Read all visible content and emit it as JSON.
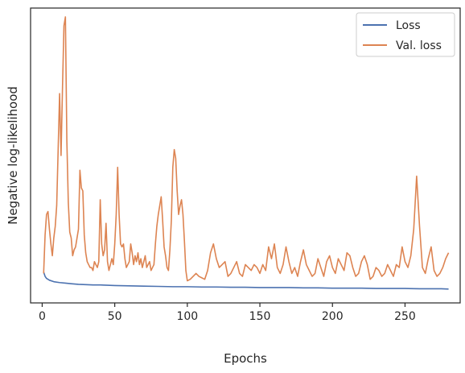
{
  "chart_data": {
    "type": "line",
    "title": "",
    "xlabel": "Epochs",
    "ylabel": "Negative log-likelihood",
    "xlim": [
      -8,
      288
    ],
    "ylim": [
      0.0,
      1.0
    ],
    "xticks": [
      0,
      50,
      100,
      150,
      200,
      250
    ],
    "yticks_shown": false,
    "grid": false,
    "legend_position": "top-right",
    "series": [
      {
        "name": "Loss",
        "color": "#4c72b0",
        "points": [
          [
            1,
            0.105
          ],
          [
            2,
            0.09
          ],
          [
            3,
            0.083
          ],
          [
            5,
            0.077
          ],
          [
            8,
            0.072
          ],
          [
            12,
            0.069
          ],
          [
            16,
            0.067
          ],
          [
            20,
            0.065
          ],
          [
            25,
            0.063
          ],
          [
            30,
            0.062
          ],
          [
            35,
            0.061
          ],
          [
            40,
            0.061
          ],
          [
            45,
            0.06
          ],
          [
            50,
            0.059
          ],
          [
            60,
            0.058
          ],
          [
            70,
            0.057
          ],
          [
            80,
            0.056
          ],
          [
            90,
            0.055
          ],
          [
            100,
            0.055
          ],
          [
            110,
            0.054
          ],
          [
            120,
            0.054
          ],
          [
            130,
            0.053
          ],
          [
            140,
            0.053
          ],
          [
            150,
            0.052
          ],
          [
            160,
            0.052
          ],
          [
            170,
            0.052
          ],
          [
            180,
            0.051
          ],
          [
            190,
            0.051
          ],
          [
            200,
            0.05
          ],
          [
            210,
            0.05
          ],
          [
            220,
            0.05
          ],
          [
            230,
            0.049
          ],
          [
            240,
            0.049
          ],
          [
            250,
            0.049
          ],
          [
            260,
            0.048
          ],
          [
            270,
            0.048
          ],
          [
            275,
            0.048
          ],
          [
            280,
            0.047
          ]
        ]
      },
      {
        "name": "Val. loss",
        "color": "#dd8452",
        "points": [
          [
            1,
            0.1
          ],
          [
            2,
            0.23
          ],
          [
            3,
            0.3
          ],
          [
            4,
            0.31
          ],
          [
            5,
            0.25
          ],
          [
            6,
            0.2
          ],
          [
            7,
            0.16
          ],
          [
            8,
            0.22
          ],
          [
            9,
            0.26
          ],
          [
            10,
            0.33
          ],
          [
            11,
            0.52
          ],
          [
            12,
            0.71
          ],
          [
            13,
            0.5
          ],
          [
            14,
            0.73
          ],
          [
            15,
            0.94
          ],
          [
            16,
            0.97
          ],
          [
            17,
            0.55
          ],
          [
            18,
            0.34
          ],
          [
            19,
            0.24
          ],
          [
            20,
            0.22
          ],
          [
            21,
            0.16
          ],
          [
            22,
            0.18
          ],
          [
            23,
            0.19
          ],
          [
            24,
            0.22
          ],
          [
            25,
            0.25
          ],
          [
            26,
            0.45
          ],
          [
            27,
            0.39
          ],
          [
            28,
            0.38
          ],
          [
            29,
            0.23
          ],
          [
            30,
            0.17
          ],
          [
            31,
            0.14
          ],
          [
            32,
            0.13
          ],
          [
            33,
            0.12
          ],
          [
            34,
            0.12
          ],
          [
            35,
            0.11
          ],
          [
            36,
            0.14
          ],
          [
            37,
            0.13
          ],
          [
            38,
            0.12
          ],
          [
            39,
            0.14
          ],
          [
            40,
            0.35
          ],
          [
            41,
            0.2
          ],
          [
            42,
            0.16
          ],
          [
            43,
            0.18
          ],
          [
            44,
            0.27
          ],
          [
            45,
            0.14
          ],
          [
            46,
            0.11
          ],
          [
            47,
            0.13
          ],
          [
            48,
            0.15
          ],
          [
            49,
            0.13
          ],
          [
            50,
            0.2
          ],
          [
            51,
            0.3
          ],
          [
            52,
            0.46
          ],
          [
            53,
            0.3
          ],
          [
            54,
            0.2
          ],
          [
            55,
            0.19
          ],
          [
            56,
            0.2
          ],
          [
            57,
            0.15
          ],
          [
            58,
            0.12
          ],
          [
            59,
            0.13
          ],
          [
            60,
            0.14
          ],
          [
            61,
            0.2
          ],
          [
            62,
            0.17
          ],
          [
            63,
            0.13
          ],
          [
            64,
            0.16
          ],
          [
            65,
            0.14
          ],
          [
            66,
            0.17
          ],
          [
            67,
            0.13
          ],
          [
            68,
            0.15
          ],
          [
            69,
            0.12
          ],
          [
            70,
            0.14
          ],
          [
            71,
            0.16
          ],
          [
            72,
            0.12
          ],
          [
            73,
            0.13
          ],
          [
            74,
            0.14
          ],
          [
            75,
            0.11
          ],
          [
            76,
            0.12
          ],
          [
            77,
            0.13
          ],
          [
            78,
            0.2
          ],
          [
            79,
            0.26
          ],
          [
            80,
            0.3
          ],
          [
            81,
            0.33
          ],
          [
            82,
            0.36
          ],
          [
            83,
            0.28
          ],
          [
            84,
            0.19
          ],
          [
            85,
            0.16
          ],
          [
            86,
            0.12
          ],
          [
            87,
            0.11
          ],
          [
            88,
            0.18
          ],
          [
            89,
            0.28
          ],
          [
            90,
            0.46
          ],
          [
            91,
            0.52
          ],
          [
            92,
            0.49
          ],
          [
            93,
            0.38
          ],
          [
            94,
            0.3
          ],
          [
            95,
            0.33
          ],
          [
            96,
            0.35
          ],
          [
            97,
            0.3
          ],
          [
            98,
            0.21
          ],
          [
            99,
            0.11
          ],
          [
            100,
            0.075
          ],
          [
            102,
            0.08
          ],
          [
            104,
            0.09
          ],
          [
            106,
            0.1
          ],
          [
            108,
            0.09
          ],
          [
            110,
            0.085
          ],
          [
            112,
            0.08
          ],
          [
            114,
            0.11
          ],
          [
            116,
            0.17
          ],
          [
            118,
            0.2
          ],
          [
            120,
            0.15
          ],
          [
            122,
            0.12
          ],
          [
            124,
            0.13
          ],
          [
            126,
            0.14
          ],
          [
            128,
            0.09
          ],
          [
            130,
            0.1
          ],
          [
            132,
            0.12
          ],
          [
            134,
            0.14
          ],
          [
            136,
            0.1
          ],
          [
            138,
            0.09
          ],
          [
            140,
            0.13
          ],
          [
            142,
            0.12
          ],
          [
            144,
            0.11
          ],
          [
            146,
            0.13
          ],
          [
            148,
            0.12
          ],
          [
            150,
            0.1
          ],
          [
            152,
            0.13
          ],
          [
            154,
            0.11
          ],
          [
            156,
            0.19
          ],
          [
            158,
            0.15
          ],
          [
            160,
            0.2
          ],
          [
            162,
            0.12
          ],
          [
            164,
            0.1
          ],
          [
            166,
            0.13
          ],
          [
            168,
            0.19
          ],
          [
            170,
            0.14
          ],
          [
            172,
            0.1
          ],
          [
            174,
            0.12
          ],
          [
            176,
            0.09
          ],
          [
            178,
            0.14
          ],
          [
            180,
            0.18
          ],
          [
            182,
            0.13
          ],
          [
            184,
            0.11
          ],
          [
            186,
            0.09
          ],
          [
            188,
            0.1
          ],
          [
            190,
            0.15
          ],
          [
            192,
            0.12
          ],
          [
            194,
            0.09
          ],
          [
            196,
            0.14
          ],
          [
            198,
            0.16
          ],
          [
            200,
            0.12
          ],
          [
            202,
            0.1
          ],
          [
            204,
            0.15
          ],
          [
            206,
            0.13
          ],
          [
            208,
            0.11
          ],
          [
            210,
            0.17
          ],
          [
            212,
            0.16
          ],
          [
            214,
            0.12
          ],
          [
            216,
            0.09
          ],
          [
            218,
            0.1
          ],
          [
            220,
            0.14
          ],
          [
            222,
            0.16
          ],
          [
            224,
            0.13
          ],
          [
            226,
            0.08
          ],
          [
            228,
            0.09
          ],
          [
            230,
            0.12
          ],
          [
            232,
            0.11
          ],
          [
            234,
            0.09
          ],
          [
            236,
            0.1
          ],
          [
            238,
            0.13
          ],
          [
            240,
            0.11
          ],
          [
            242,
            0.09
          ],
          [
            244,
            0.13
          ],
          [
            246,
            0.12
          ],
          [
            248,
            0.19
          ],
          [
            250,
            0.14
          ],
          [
            252,
            0.12
          ],
          [
            254,
            0.16
          ],
          [
            256,
            0.25
          ],
          [
            258,
            0.43
          ],
          [
            260,
            0.26
          ],
          [
            262,
            0.12
          ],
          [
            264,
            0.1
          ],
          [
            266,
            0.15
          ],
          [
            268,
            0.19
          ],
          [
            270,
            0.11
          ],
          [
            272,
            0.09
          ],
          [
            274,
            0.1
          ],
          [
            276,
            0.12
          ],
          [
            278,
            0.15
          ],
          [
            280,
            0.17
          ]
        ]
      }
    ]
  }
}
